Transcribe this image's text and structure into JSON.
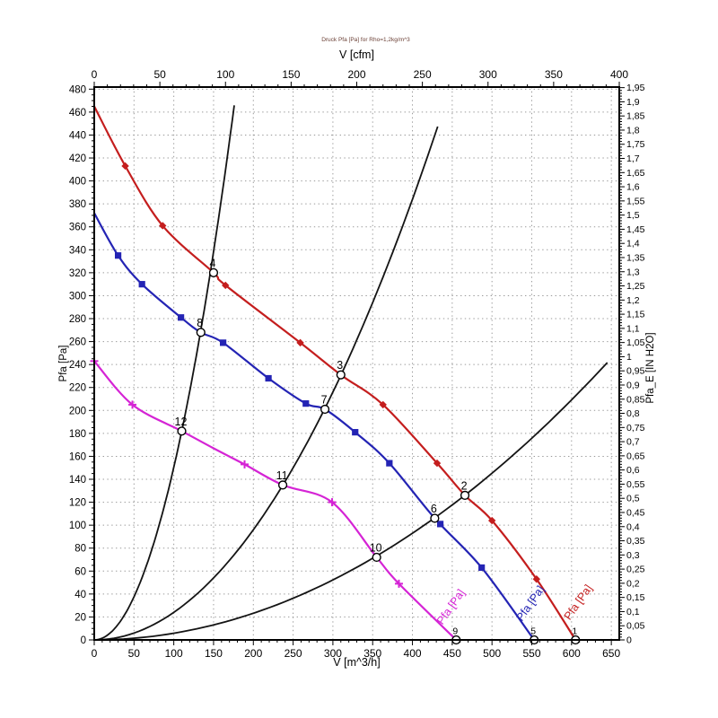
{
  "chart_data": {
    "type": "line",
    "title": "Druck Pfa [Pa] for Rho=1,2kg/m^3",
    "grid": true,
    "colors": {
      "red": "#c41e1e",
      "blue": "#2424b4",
      "magenta": "#d524d5",
      "black": "#141414",
      "grid": "#9a9a9a",
      "title_text": "#6b4036"
    },
    "axes": {
      "top": {
        "label": "V [cfm]",
        "min": 0,
        "max": 400,
        "major": 50,
        "minor": 10
      },
      "bottom": {
        "label": "V [m^3/h]",
        "min": 0,
        "max": 660,
        "tick_end": 650,
        "major": 50,
        "minor": 10
      },
      "left": {
        "label": "Pfa [Pa]",
        "min": 0,
        "max": 480,
        "major": 20,
        "minor": 5
      },
      "right": {
        "label": "Pfa_E [IN H2O]",
        "min": 0,
        "max": 1.95,
        "major": 0.05,
        "minor": 0.01,
        "decimal_comma": true
      }
    },
    "series": [
      {
        "name": "fan-curve-high-speed",
        "label": "Pfa [Pa]",
        "color_key": "red",
        "marker": "diamond",
        "points": [
          [
            0,
            465
          ],
          [
            39,
            413
          ],
          [
            86,
            361
          ],
          [
            150,
            320
          ],
          [
            165,
            309
          ],
          [
            259,
            259
          ],
          [
            310,
            231
          ],
          [
            363,
            205
          ],
          [
            431,
            154
          ],
          [
            466,
            126
          ],
          [
            500,
            104
          ],
          [
            556,
            53
          ],
          [
            605,
            0
          ]
        ],
        "marker_points": [
          [
            39,
            413
          ],
          [
            86,
            361
          ],
          [
            165,
            309
          ],
          [
            259,
            259
          ],
          [
            363,
            205
          ],
          [
            431,
            154
          ],
          [
            500,
            104
          ],
          [
            556,
            53
          ]
        ]
      },
      {
        "name": "fan-curve-mid-speed",
        "label": "Pfa [Pa]",
        "color_key": "blue",
        "marker": "square",
        "points": [
          [
            0,
            372
          ],
          [
            30,
            335
          ],
          [
            60,
            310
          ],
          [
            109,
            281
          ],
          [
            134,
            268
          ],
          [
            162,
            259
          ],
          [
            219,
            228
          ],
          [
            266,
            206
          ],
          [
            290,
            201
          ],
          [
            328,
            181
          ],
          [
            371,
            154
          ],
          [
            428,
            106
          ],
          [
            487,
            63
          ],
          [
            553,
            0
          ]
        ],
        "marker_points": [
          [
            30,
            335
          ],
          [
            60,
            310
          ],
          [
            109,
            281
          ],
          [
            162,
            259
          ],
          [
            219,
            228
          ],
          [
            266,
            206
          ],
          [
            328,
            181
          ],
          [
            371,
            154
          ],
          [
            435,
            101
          ],
          [
            487,
            63
          ]
        ]
      },
      {
        "name": "fan-curve-low-speed",
        "label": "Pfa [Pa]",
        "color_key": "magenta",
        "marker": "plus",
        "points": [
          [
            0,
            243
          ],
          [
            48,
            205
          ],
          [
            110,
            182
          ],
          [
            150,
            167
          ],
          [
            189,
            153
          ],
          [
            237,
            135
          ],
          [
            299,
            120
          ],
          [
            355,
            72
          ],
          [
            383,
            49
          ],
          [
            455,
            0
          ]
        ],
        "marker_points": [
          [
            0,
            243
          ],
          [
            48,
            205
          ],
          [
            189,
            153
          ],
          [
            299,
            120
          ],
          [
            383,
            49
          ]
        ]
      }
    ],
    "system_curves": [
      {
        "name": "system-curve-steep",
        "k": 0.01504,
        "v_max": 176
      },
      {
        "name": "system-curve-middle",
        "k": 0.0024,
        "v_max": 438
      },
      {
        "name": "system-curve-shallow",
        "k": 0.000581,
        "v_max": 645
      }
    ],
    "operating_points": [
      {
        "n": "1",
        "v": 605,
        "p": 0
      },
      {
        "n": "2",
        "v": 466,
        "p": 126
      },
      {
        "n": "3",
        "v": 310,
        "p": 231
      },
      {
        "n": "4",
        "v": 150,
        "p": 320
      },
      {
        "n": "5",
        "v": 553,
        "p": 0
      },
      {
        "n": "6",
        "v": 428,
        "p": 106
      },
      {
        "n": "7",
        "v": 290,
        "p": 201
      },
      {
        "n": "8",
        "v": 134,
        "p": 268
      },
      {
        "n": "9",
        "v": 455,
        "p": 0
      },
      {
        "n": "10",
        "v": 355,
        "p": 72
      },
      {
        "n": "11",
        "v": 237,
        "p": 135
      },
      {
        "n": "12",
        "v": 110,
        "p": 182
      }
    ],
    "end_labels": [
      {
        "text": "Pfa [Pa]",
        "color_key": "magenta",
        "v": 452,
        "p": 27,
        "angle": -55
      },
      {
        "text": "Pfa [Pa]",
        "color_key": "blue",
        "v": 552,
        "p": 30,
        "angle": -55
      },
      {
        "text": "Pfa [Pa]",
        "color_key": "red",
        "v": 612,
        "p": 31,
        "angle": -55
      }
    ]
  }
}
